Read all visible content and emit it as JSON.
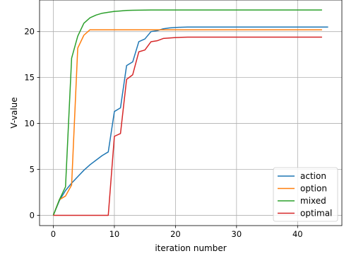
{
  "chart_data": {
    "type": "line",
    "title": "",
    "xlabel": "iteration number",
    "ylabel": "V-value",
    "xlim": [
      -2.25,
      47.25
    ],
    "ylim": [
      -1.12,
      23.44
    ],
    "xticks": [
      0,
      10,
      20,
      30,
      40
    ],
    "yticks": [
      0,
      5,
      10,
      15,
      20
    ],
    "grid": true,
    "legend_position": "lower-right",
    "series": [
      {
        "name": "action",
        "color": "#1f77b4",
        "x": [
          0,
          1,
          2,
          3,
          4,
          5,
          6,
          7,
          8,
          9,
          10,
          11,
          12,
          13,
          14,
          15,
          16,
          17,
          18,
          19,
          20,
          21,
          22,
          23,
          24,
          25,
          26,
          27,
          28,
          29,
          30,
          31,
          32,
          33,
          34,
          35,
          36,
          37,
          38,
          39,
          40,
          41,
          42,
          43,
          44,
          45
        ],
        "y": [
          0,
          1.6,
          2.7,
          3.5,
          4.2,
          4.9,
          5.5,
          6.0,
          6.5,
          6.9,
          11.3,
          11.7,
          16.3,
          16.7,
          18.9,
          19.2,
          20.0,
          20.1,
          20.3,
          20.4,
          20.45,
          20.48,
          20.5,
          20.5,
          20.5,
          20.5,
          20.5,
          20.5,
          20.5,
          20.5,
          20.5,
          20.5,
          20.5,
          20.5,
          20.5,
          20.5,
          20.5,
          20.5,
          20.5,
          20.5,
          20.5,
          20.5,
          20.5,
          20.5,
          20.5,
          20.5
        ]
      },
      {
        "name": "option",
        "color": "#ff7f0e",
        "x": [
          0,
          1,
          2,
          3,
          4,
          5,
          6,
          7,
          8,
          9,
          10,
          11,
          12,
          13,
          14,
          15,
          16,
          17,
          18,
          19,
          20,
          21,
          22,
          23,
          24,
          25,
          26,
          27,
          28,
          29,
          30,
          31,
          32,
          33,
          34,
          35,
          36,
          37,
          38,
          39,
          40,
          41,
          42,
          43,
          44
        ],
        "y": [
          0,
          1.7,
          2.1,
          3.3,
          18.2,
          19.6,
          20.2,
          20.2,
          20.2,
          20.2,
          20.2,
          20.2,
          20.2,
          20.2,
          20.2,
          20.2,
          20.2,
          20.2,
          20.2,
          20.2,
          20.2,
          20.2,
          20.2,
          20.2,
          20.2,
          20.2,
          20.2,
          20.2,
          20.2,
          20.2,
          20.2,
          20.2,
          20.2,
          20.2,
          20.2,
          20.2,
          20.2,
          20.2,
          20.2,
          20.2,
          20.2,
          20.2,
          20.2,
          20.2,
          20.2
        ]
      },
      {
        "name": "mixed",
        "color": "#2ca02c",
        "x": [
          0,
          1,
          2,
          3,
          4,
          5,
          6,
          7,
          8,
          9,
          10,
          11,
          12,
          13,
          14,
          15,
          16,
          17,
          18,
          19,
          20,
          21,
          22,
          23,
          24,
          25,
          26,
          27,
          28,
          29,
          30,
          31,
          32,
          33,
          34,
          35,
          36,
          37,
          38,
          39,
          40,
          41,
          42,
          43,
          44
        ],
        "y": [
          0,
          1.7,
          3.1,
          17.1,
          19.5,
          20.9,
          21.5,
          21.8,
          22.0,
          22.1,
          22.2,
          22.25,
          22.3,
          22.32,
          22.33,
          22.34,
          22.35,
          22.35,
          22.35,
          22.35,
          22.35,
          22.35,
          22.35,
          22.35,
          22.35,
          22.35,
          22.35,
          22.35,
          22.35,
          22.35,
          22.35,
          22.35,
          22.35,
          22.35,
          22.35,
          22.35,
          22.35,
          22.35,
          22.35,
          22.35,
          22.35,
          22.35,
          22.35,
          22.35,
          22.35
        ]
      },
      {
        "name": "optimal",
        "color": "#d62728",
        "x": [
          0,
          1,
          2,
          3,
          4,
          5,
          6,
          7,
          8,
          9,
          10,
          11,
          12,
          13,
          14,
          15,
          16,
          17,
          18,
          19,
          20,
          21,
          22,
          23,
          24,
          25,
          26,
          27,
          28,
          29,
          30,
          31,
          32,
          33,
          34,
          35,
          36,
          37,
          38,
          39,
          40,
          41,
          42,
          43,
          44
        ],
        "y": [
          0,
          0,
          0,
          0,
          0,
          0,
          0,
          0,
          0,
          0,
          8.6,
          8.9,
          14.8,
          15.3,
          17.8,
          18.0,
          18.9,
          19.0,
          19.25,
          19.3,
          19.35,
          19.38,
          19.4,
          19.4,
          19.4,
          19.4,
          19.4,
          19.4,
          19.4,
          19.4,
          19.4,
          19.4,
          19.4,
          19.4,
          19.4,
          19.4,
          19.4,
          19.4,
          19.4,
          19.4,
          19.4,
          19.4,
          19.4,
          19.4,
          19.4
        ]
      }
    ]
  }
}
